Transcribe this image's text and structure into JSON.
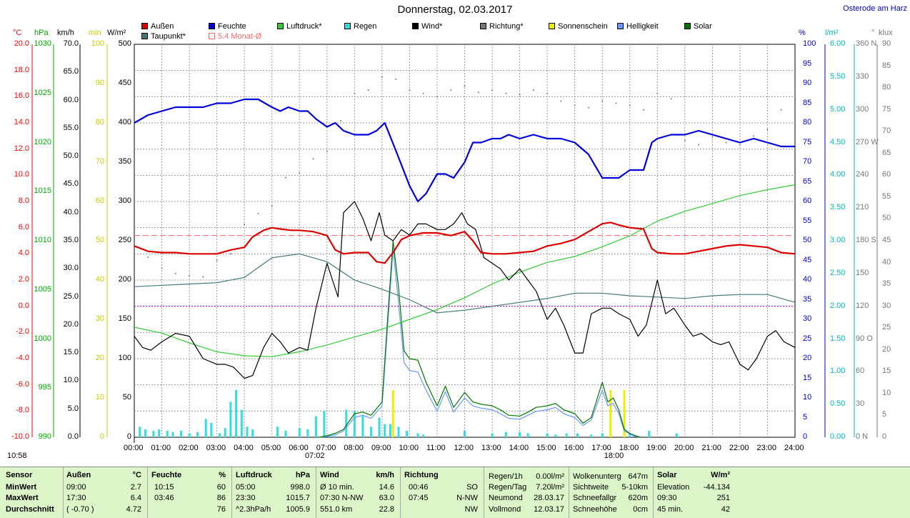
{
  "title": "Donnerstag, 02.03.2017",
  "station": "Osterode am Harz",
  "legend": [
    {
      "label": "Außen",
      "color": "#dd0000"
    },
    {
      "label": "Feuchte",
      "color": "#0000dd"
    },
    {
      "label": "Luftdruck*",
      "color": "#33cc33"
    },
    {
      "label": "Regen",
      "color": "#33dddd"
    },
    {
      "label": "Wind*",
      "color": "#000000"
    },
    {
      "label": "Richtung*",
      "color": "#777777"
    },
    {
      "label": "Sonnenschein",
      "color": "#eeee00"
    },
    {
      "label": "Helligkeit",
      "color": "#6699ff"
    },
    {
      "label": "Solar",
      "color": "#007700"
    },
    {
      "label": "Taupunkt*",
      "color": "#447777"
    },
    {
      "label": "5.4 Monat-Ø",
      "color": "#ff6666"
    }
  ],
  "units": {
    "temp": "°C",
    "pressure": "hPa",
    "wind": "km/h",
    "sunmin": "min",
    "solar": "W/m²",
    "humidity": "%",
    "rain": "l/m²",
    "direction": "°",
    "lux": "klux"
  },
  "axes": {
    "temp": [
      "20.0",
      "18.0",
      "16.0",
      "14.0",
      "12.0",
      "10.0",
      "8.0",
      "6.0",
      "4.0",
      "2.0",
      "0.0",
      "-2.0",
      "-4.0",
      "-6.0",
      "-8.0",
      "-10.0"
    ],
    "pressure": [
      "1030",
      "1025",
      "1020",
      "1015",
      "1010",
      "1005",
      "1000",
      "995",
      "990"
    ],
    "wind": [
      "70.0",
      "65.0",
      "60.0",
      "55.0",
      "50.0",
      "45.0",
      "40.0",
      "35.0",
      "30.0",
      "25.0",
      "20.0",
      "15.0",
      "10.0",
      "5.0",
      "0.0"
    ],
    "sunmin": [
      "100",
      "90",
      "80",
      "70",
      "60",
      "50",
      "40",
      "30",
      "20",
      "10",
      "0"
    ],
    "solar": [
      "500",
      "450",
      "400",
      "350",
      "300",
      "250",
      "200",
      "150",
      "100",
      "50",
      "0"
    ],
    "humidity": [
      "100",
      "95",
      "90",
      "85",
      "80",
      "75",
      "70",
      "65",
      "60",
      "55",
      "50",
      "45",
      "40",
      "35",
      "30",
      "25",
      "20",
      "15",
      "10",
      "5",
      "0"
    ],
    "rain": [
      "6.00",
      "5.50",
      "5.00",
      "4.50",
      "4.00",
      "3.50",
      "3.00",
      "2.50",
      "2.00",
      "1.50",
      "1.00",
      "0.50",
      "0.00"
    ],
    "direction": [
      "360 N",
      "330",
      "300",
      "270 W",
      "240",
      "210",
      "180 S",
      "150",
      "120",
      "90 O",
      "60",
      "30",
      "0 N"
    ],
    "lux": [
      "90",
      "85",
      "80",
      "75",
      "70",
      "65",
      "60",
      "55",
      "50",
      "45",
      "40",
      "35",
      "30",
      "25",
      "20",
      "15",
      "10",
      "5",
      "0"
    ],
    "x": [
      "00:00",
      "01:00",
      "02:00",
      "03:00",
      "04:00",
      "05:00",
      "06:00",
      "07:00",
      "08:00",
      "09:00",
      "10:00",
      "11:00",
      "12:00",
      "13:00",
      "14:00",
      "15:00",
      "16:00",
      "17:00",
      "18:00",
      "19:00",
      "20:00",
      "21:00",
      "22:00",
      "23:00",
      "24:00"
    ]
  },
  "sunrise": "07:02",
  "sunset": "18:00",
  "moonrise_left": "10:58",
  "chart_data": {
    "type": "line",
    "title": "Donnerstag, 02.03.2017",
    "x_range": [
      0,
      24
    ],
    "ylim": [
      -10,
      20
    ],
    "month_avg": 5.4,
    "series": [
      {
        "name": "Außen",
        "axis": "temp",
        "x": [
          0,
          0.5,
          1,
          1.5,
          2,
          2.5,
          3,
          3.5,
          4,
          4.3,
          4.7,
          5,
          5.3,
          5.7,
          6,
          6.5,
          7,
          7.3,
          7.6,
          8,
          8.5,
          8.8,
          9.1,
          9.4,
          9.7,
          10,
          10.5,
          11,
          11.5,
          12,
          12.3,
          12.6,
          13,
          13.5,
          14,
          14.5,
          15,
          15.5,
          16,
          16.5,
          17,
          17.3,
          17.6,
          18,
          18.5,
          18.8,
          19,
          19.5,
          20,
          20.5,
          21,
          21.5,
          22,
          22.5,
          23,
          23.5,
          24
        ],
        "y": [
          4.6,
          4.2,
          4.1,
          4.1,
          4.0,
          4.0,
          4.0,
          4.3,
          4.5,
          5.3,
          5.8,
          6.0,
          5.9,
          5.8,
          5.8,
          5.7,
          5.4,
          4.3,
          4.0,
          4.1,
          4.1,
          3.4,
          3.3,
          4.1,
          5.1,
          5.4,
          5.6,
          5.6,
          5.4,
          5.7,
          5.0,
          4.1,
          4.0,
          4.0,
          4.1,
          4.2,
          4.6,
          4.8,
          5.1,
          5.7,
          6.3,
          6.4,
          6.2,
          6.0,
          5.9,
          4.4,
          4.1,
          4.0,
          4.0,
          4.2,
          4.4,
          4.6,
          4.7,
          4.6,
          4.5,
          4.1,
          4.0
        ]
      },
      {
        "name": "Taupunkt*",
        "axis": "temp",
        "x": [
          0,
          1,
          2,
          3,
          4,
          5,
          6,
          7,
          8,
          9,
          10,
          11,
          12,
          13,
          14,
          15,
          16,
          17,
          18,
          19,
          20,
          21,
          22,
          23,
          24
        ],
        "y": [
          1.5,
          1.6,
          1.7,
          1.8,
          2.2,
          3.7,
          4.0,
          3.4,
          2.0,
          1.3,
          0.5,
          -0.5,
          -0.3,
          0,
          0.3,
          0.6,
          1.0,
          1.0,
          0.8,
          0.7,
          0.6,
          0.8,
          0.9,
          0.9,
          0.3
        ]
      },
      {
        "name": "Feuchte",
        "axis": "humidity",
        "x": [
          0,
          0.5,
          1,
          1.5,
          2,
          2.5,
          3,
          3.5,
          4,
          4.5,
          5,
          5.3,
          5.6,
          6,
          6.3,
          6.6,
          7,
          7.3,
          7.6,
          8,
          8.5,
          8.8,
          9.1,
          9.5,
          10,
          10.3,
          10.6,
          11,
          11.3,
          11.6,
          12,
          12.3,
          12.6,
          13,
          13.3,
          13.6,
          14,
          14.5,
          15,
          15.5,
          16,
          16.5,
          17,
          17.3,
          17.6,
          18,
          18.5,
          18.8,
          19,
          19.5,
          20,
          20.5,
          21,
          21.5,
          22,
          22.5,
          23,
          23.5,
          24
        ],
        "y": [
          80,
          82,
          83,
          84,
          84,
          84,
          85,
          85,
          86,
          86,
          84,
          83,
          84,
          83,
          83,
          81,
          79,
          80,
          78,
          77,
          77,
          78,
          80,
          73,
          64,
          60,
          62,
          67,
          67,
          66,
          70,
          75,
          75,
          76,
          76,
          77,
          76,
          77,
          76,
          76,
          75,
          72,
          66,
          66,
          66,
          68,
          68,
          75,
          76,
          77,
          77,
          78,
          77,
          76,
          75,
          76,
          75,
          74,
          74
        ]
      },
      {
        "name": "Luftdruck*",
        "axis": "pressure",
        "x": [
          0,
          1,
          2,
          3,
          4,
          5,
          6,
          7,
          8,
          9,
          10,
          11,
          12,
          13,
          14,
          15,
          16,
          17,
          18,
          19,
          20,
          21,
          22,
          23,
          24
        ],
        "y": [
          1001.2,
          1000.6,
          999.6,
          998.7,
          998.3,
          998.2,
          998.7,
          999.4,
          1000.2,
          1001.0,
          1002.0,
          1003.0,
          1004.2,
          1005.6,
          1006.8,
          1007.8,
          1008.4,
          1009.4,
          1010.5,
          1012.0,
          1013.0,
          1013.8,
          1014.6,
          1015.2,
          1015.7
        ]
      },
      {
        "name": "Wind*",
        "axis": "wind",
        "x": [
          0,
          0.3,
          0.6,
          1,
          1.5,
          2,
          2.5,
          3,
          3.3,
          3.6,
          4,
          4.3,
          4.7,
          5,
          5.3,
          5.6,
          6,
          6.3,
          6.6,
          7,
          7.2,
          7.4,
          7.6,
          7.8,
          8,
          8.3,
          8.6,
          8.9,
          9.1,
          9.4,
          9.7,
          10,
          10.3,
          10.6,
          11,
          11.3,
          11.6,
          11.9,
          12.1,
          12.4,
          12.7,
          13,
          13.3,
          13.6,
          14,
          14.3,
          14.6,
          15,
          15.3,
          15.6,
          16,
          16.3,
          16.6,
          17,
          17.3,
          17.6,
          18,
          18.3,
          18.6,
          19,
          19.3,
          19.6,
          20,
          20.3,
          20.6,
          21,
          21.3,
          21.6,
          22,
          22.3,
          22.6,
          23,
          23.3,
          23.6,
          24
        ],
        "y": [
          18,
          16,
          15.5,
          17,
          18.5,
          18,
          14,
          13,
          13,
          12.5,
          10.5,
          11,
          16,
          18.5,
          17,
          15,
          16,
          15.5,
          23,
          31,
          28,
          25,
          40,
          41,
          42,
          39,
          35,
          40,
          36,
          35,
          37,
          36,
          38,
          38,
          37,
          37,
          38,
          40,
          38,
          37,
          32,
          31,
          30,
          28,
          30,
          28,
          26,
          21,
          23,
          20,
          15,
          15,
          22,
          23,
          23,
          22,
          21,
          18,
          20,
          28,
          22,
          23,
          20,
          18,
          18.5,
          17,
          16.5,
          17,
          13,
          12,
          14,
          18,
          19,
          17,
          16
        ]
      },
      {
        "name": "Richtung*",
        "axis": "direction",
        "x": [
          0,
          0.5,
          1,
          1.5,
          2,
          2.5,
          3,
          3.5,
          4,
          4.5,
          5,
          5.5,
          6,
          6.5,
          7,
          7.5,
          8,
          8.5,
          9,
          9.5,
          10,
          10.5,
          11,
          11.5,
          12,
          12.5,
          13,
          13.5,
          14,
          14.5,
          15,
          15.5,
          16,
          16.5,
          17,
          17.5,
          18,
          18.5,
          19,
          19.5,
          20,
          20.5,
          21,
          21.5,
          22,
          22.5,
          23,
          23.5,
          24
        ],
        "y": [
          170,
          165,
          155,
          150,
          148,
          147,
          162,
          168,
          195,
          205,
          212,
          238,
          242,
          255,
          262,
          290,
          315,
          318,
          330,
          328,
          318,
          315,
          312,
          318,
          322,
          316,
          318,
          315,
          314,
          318,
          315,
          308,
          304,
          302,
          308,
          306,
          304,
          300,
          315,
          310,
          272,
          268,
          275,
          270,
          268,
          276,
          282,
          300,
          318
        ]
      },
      {
        "name": "Solar",
        "axis": "solar",
        "x": [
          6.7,
          7,
          7.3,
          7.6,
          8,
          8.3,
          8.6,
          9,
          9.2,
          9.4,
          9.6,
          9.8,
          10,
          10.3,
          10.6,
          11,
          11.3,
          11.6,
          12,
          12.3,
          12.6,
          13,
          13.3,
          13.6,
          14,
          14.3,
          14.6,
          15,
          15.3,
          15.6,
          16,
          16.3,
          16.6,
          17,
          17.2,
          17.4,
          17.6,
          17.8,
          18,
          18.2,
          18.4
        ],
        "y": [
          0,
          2,
          5,
          10,
          30,
          32,
          28,
          45,
          150,
          250,
          190,
          110,
          100,
          98,
          70,
          40,
          65,
          38,
          57,
          45,
          42,
          40,
          35,
          28,
          27,
          32,
          38,
          40,
          43,
          35,
          30,
          18,
          25,
          70,
          45,
          50,
          35,
          10,
          5,
          2,
          0
        ]
      },
      {
        "name": "Helligkeit",
        "axis": "solar",
        "x": [
          6.7,
          7,
          7.3,
          7.6,
          8,
          8.3,
          8.6,
          9,
          9.2,
          9.4,
          9.6,
          9.8,
          10,
          10.3,
          10.6,
          11,
          11.3,
          11.6,
          12,
          12.3,
          12.6,
          13,
          13.3,
          13.6,
          14,
          14.3,
          14.6,
          15,
          15.3,
          15.6,
          16,
          16.3,
          16.6,
          17,
          17.2,
          17.4,
          17.6,
          17.8,
          18,
          18.2,
          18.4
        ],
        "y": [
          0,
          1,
          3,
          8,
          25,
          28,
          24,
          40,
          140,
          240,
          170,
          95,
          85,
          83,
          60,
          33,
          58,
          32,
          50,
          40,
          37,
          35,
          30,
          24,
          23,
          28,
          33,
          35,
          38,
          30,
          25,
          15,
          22,
          60,
          40,
          43,
          30,
          8,
          4,
          1,
          0
        ]
      },
      {
        "name": "Sonnenschein",
        "axis": "sunmin",
        "x": [
          9.4,
          17.3,
          17.8
        ],
        "y": [
          12,
          12,
          12
        ]
      },
      {
        "name": "Regen",
        "axis": "rain",
        "x": [
          0.2,
          0.4,
          0.7,
          0.9,
          1.2,
          1.4,
          1.7,
          2.0,
          2.3,
          2.6,
          2.8,
          3.1,
          3.3,
          3.5,
          3.7,
          3.9,
          4.1,
          4.3,
          5.2,
          5.5,
          6.0,
          6.3,
          6.6,
          6.9,
          7.1,
          7.3,
          7.7,
          8.0,
          8.3,
          8.6,
          8.9,
          9.1,
          9.3,
          9.6,
          9.9,
          10.3,
          10.5,
          12.0,
          13.0,
          13.5,
          14.0,
          14.3,
          15.0,
          15.3,
          15.7,
          16.1,
          16.6,
          17.0,
          18.0,
          18.7,
          19.7
        ],
        "y": [
          0.16,
          0.12,
          0.1,
          0.12,
          0.1,
          0.08,
          0.1,
          0.06,
          0.08,
          0.28,
          0.22,
          0.06,
          0.14,
          0.54,
          0.72,
          0.42,
          0.16,
          0.12,
          0.16,
          0.1,
          0.14,
          0.12,
          0.32,
          0.4,
          0.04,
          0.02,
          0.42,
          0.4,
          0.34,
          0.16,
          0.3,
          0.2,
          0.2,
          0.16,
          0.1,
          0.06,
          0.04,
          0.1,
          0.06,
          0.08,
          0.08,
          0.06,
          0.06,
          0.04,
          0.06,
          0.06,
          0.04,
          0.06,
          0.06,
          0.1,
          0.06
        ]
      }
    ]
  },
  "stats": {
    "sensor": {
      "h": "Sensor",
      "rows": [
        "MinWert",
        "MaxWert",
        "Durchschnitt"
      ]
    },
    "aussen": {
      "h": "Außen",
      "u": "°C",
      "t": [
        "09:00",
        "17:30",
        "( -0.70 )"
      ],
      "v": [
        "2.7",
        "6.4",
        "4.72"
      ]
    },
    "feuchte": {
      "h": "Feuchte",
      "u": "%",
      "t": [
        "10:15",
        "03:46",
        ""
      ],
      "v": [
        "60",
        "86",
        "76"
      ]
    },
    "luftdruck": {
      "h": "Luftdruck",
      "u": "hPa",
      "t": [
        "05:00",
        "23:30",
        "^2.3hPa/h"
      ],
      "v": [
        "998.0",
        "1015.7",
        "1005.9"
      ]
    },
    "wind": {
      "h": "Wind",
      "u": "km/h",
      "t": [
        "Ø 10 min.",
        "07:30  N-NW",
        "551.0 km"
      ],
      "v": [
        "14.6",
        "63.0",
        "22.8"
      ]
    },
    "richtung": {
      "h": "Richtung",
      "t": [
        "00:46",
        "07:45",
        ""
      ],
      "v": [
        "SO",
        "N-NW",
        "NW"
      ]
    },
    "regen": {
      "l": [
        "Regen/1h",
        "Regen/Tag",
        "Neumond",
        "Vollmond"
      ],
      "v": [
        "0.00l/m²",
        "7.20l/m²",
        "28.03.17",
        "12.03.17"
      ]
    },
    "wolken": {
      "l": [
        "Wolkenunterg",
        "Sichtweite",
        "Schneefallgr",
        "Schneehöhe"
      ],
      "v": [
        "647m",
        "5-10km",
        "620m",
        "0cm"
      ]
    },
    "solar": {
      "h": "Solar",
      "u": "W/m²",
      "t": [
        "Elevation",
        "09:30",
        "45 min."
      ],
      "v": [
        "-44.134",
        "251",
        "42"
      ]
    }
  }
}
